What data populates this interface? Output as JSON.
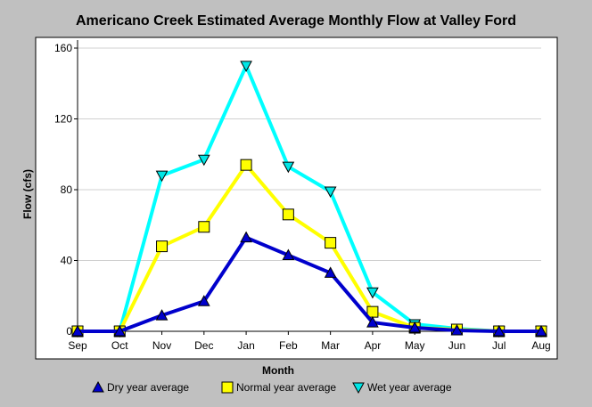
{
  "chart_data": {
    "type": "line",
    "title": "Americano Creek Estimated Average Monthly Flow at Valley Ford",
    "xlabel": "Month",
    "ylabel": "Flow (cfs)",
    "categories": [
      "Sep",
      "Oct",
      "Nov",
      "Dec",
      "Jan",
      "Feb",
      "Mar",
      "Apr",
      "May",
      "Jun",
      "Jul",
      "Aug"
    ],
    "ylim": [
      0,
      160
    ],
    "yticks": [
      0,
      40,
      80,
      120,
      160
    ],
    "grid": true,
    "legend_position": "bottom",
    "series": [
      {
        "name": "Dry year average",
        "marker": "triangle-up",
        "color": "#0000cc",
        "marker_color": "#0000cc",
        "values": [
          0,
          0,
          9,
          17,
          53,
          43,
          33,
          5,
          2,
          0.5,
          0,
          0
        ]
      },
      {
        "name": "Normal year average",
        "marker": "square",
        "color": "#ffff00",
        "marker_color": "#ffff00",
        "values": [
          0,
          0,
          48,
          59,
          94,
          66,
          50,
          11,
          2,
          1,
          0,
          0
        ]
      },
      {
        "name": "Wet year average",
        "marker": "triangle-down",
        "color": "#00ffff",
        "marker_color": "#00e6e6",
        "values": [
          0,
          0,
          88,
          97,
          150,
          93,
          79,
          22,
          4,
          1.5,
          0,
          0
        ]
      }
    ]
  }
}
